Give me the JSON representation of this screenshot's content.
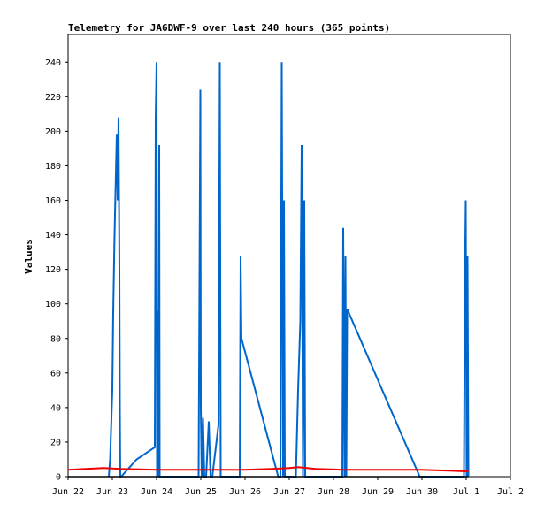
{
  "chart_data": {
    "type": "line",
    "title": "Telemetry for JA6DWF-9 over last 240 hours (365 points)",
    "xlabel": "",
    "ylabel": "Values",
    "ylim": [
      0,
      256
    ],
    "yticks": [
      0,
      20,
      40,
      60,
      80,
      100,
      120,
      140,
      160,
      180,
      200,
      220,
      240
    ],
    "xlim_days": [
      0,
      10
    ],
    "xtick_labels": [
      "Jun 22",
      "Jun 23",
      "Jun 24",
      "Jun 25",
      "Jun 26",
      "Jun 27",
      "Jun 28",
      "Jun 29",
      "Jun 30",
      "Jul 1",
      "Jul 2"
    ],
    "grid": false,
    "legend": "none",
    "series": [
      {
        "color": "#0066cc",
        "points": [
          [
            0.92,
            0
          ],
          [
            0.95,
            10
          ],
          [
            1.0,
            50
          ],
          [
            1.02,
            95
          ],
          [
            1.05,
            140
          ],
          [
            1.08,
            175
          ],
          [
            1.1,
            198
          ],
          [
            1.12,
            160
          ],
          [
            1.14,
            208
          ],
          [
            1.16,
            120
          ],
          [
            1.17,
            40
          ],
          [
            1.18,
            0
          ],
          [
            1.2,
            0
          ],
          [
            1.55,
            10
          ],
          [
            1.96,
            17
          ],
          [
            1.98,
            208
          ],
          [
            2.0,
            240
          ],
          [
            2.01,
            0
          ],
          [
            2.03,
            96
          ],
          [
            2.04,
            0
          ],
          [
            2.06,
            192
          ],
          [
            2.07,
            0
          ],
          [
            2.95,
            0
          ],
          [
            2.97,
            112
          ],
          [
            2.99,
            224
          ],
          [
            3.0,
            40
          ],
          [
            3.02,
            0
          ],
          [
            3.05,
            34
          ],
          [
            3.08,
            0
          ],
          [
            3.12,
            0
          ],
          [
            3.18,
            32
          ],
          [
            3.22,
            0
          ],
          [
            3.26,
            0
          ],
          [
            3.4,
            30
          ],
          [
            3.43,
            240
          ],
          [
            3.45,
            0
          ],
          [
            3.88,
            0
          ],
          [
            3.9,
            128
          ],
          [
            3.92,
            80
          ],
          [
            4.75,
            0
          ],
          [
            4.8,
            0
          ],
          [
            4.83,
            240
          ],
          [
            4.86,
            0
          ],
          [
            4.88,
            160
          ],
          [
            4.9,
            0
          ],
          [
            5.15,
            0
          ],
          [
            5.2,
            50
          ],
          [
            5.25,
            90
          ],
          [
            5.28,
            192
          ],
          [
            5.31,
            0
          ],
          [
            5.34,
            160
          ],
          [
            5.36,
            0
          ],
          [
            6.2,
            0
          ],
          [
            6.22,
            144
          ],
          [
            6.25,
            0
          ],
          [
            6.27,
            128
          ],
          [
            6.29,
            0
          ],
          [
            6.31,
            97
          ],
          [
            7.95,
            0
          ],
          [
            8.95,
            0
          ],
          [
            8.97,
            112
          ],
          [
            8.99,
            160
          ],
          [
            9.01,
            0
          ],
          [
            9.03,
            128
          ],
          [
            9.05,
            0
          ]
        ]
      },
      {
        "color": "#ee0000",
        "points": [
          [
            0.0,
            4
          ],
          [
            0.4,
            4.5
          ],
          [
            0.8,
            5
          ],
          [
            1.2,
            4.5
          ],
          [
            2.0,
            4
          ],
          [
            3.0,
            4
          ],
          [
            4.0,
            4
          ],
          [
            4.6,
            4.5
          ],
          [
            5.0,
            5
          ],
          [
            5.2,
            5.5
          ],
          [
            5.6,
            4.5
          ],
          [
            6.2,
            4
          ],
          [
            7.0,
            4
          ],
          [
            8.0,
            4
          ],
          [
            8.6,
            3.5
          ],
          [
            9.05,
            3
          ]
        ]
      },
      {
        "color": "#000000",
        "points": [
          [
            0.0,
            0
          ],
          [
            9.05,
            0
          ]
        ]
      }
    ]
  }
}
